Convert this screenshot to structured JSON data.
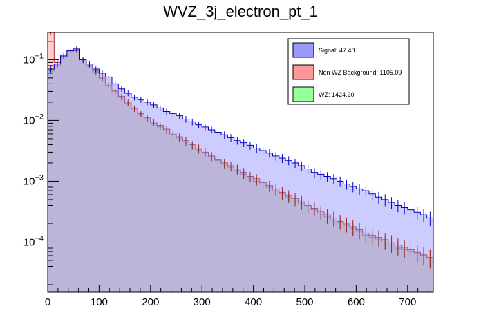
{
  "chart_data": {
    "type": "histogram",
    "title": "WVZ_3j_electron_pt_1",
    "xlabel": "",
    "ylabel": "",
    "xlim": [
      0,
      750
    ],
    "ylim": [
      1.5e-05,
      0.28
    ],
    "y_scale": "log",
    "bin_width": 12.5,
    "x_ticks": [
      0,
      100,
      200,
      300,
      400,
      500,
      600,
      700
    ],
    "x_tick_labels": [
      "0",
      "100",
      "200",
      "300",
      "400",
      "500",
      "600",
      "700"
    ],
    "y_ticks": [
      {
        "value": 0.1,
        "base": "10",
        "exp": "−1"
      },
      {
        "value": 0.01,
        "base": "10",
        "exp": "−2"
      },
      {
        "value": 0.001,
        "base": "10",
        "exp": "−3"
      },
      {
        "value": 0.0001,
        "base": "10",
        "exp": "−4"
      }
    ],
    "legend_position": "top-right",
    "colors": {
      "signal": "#9999ff",
      "background": "#ff9999",
      "wz": "#99ff99",
      "overlap_signal_wz": "#66c2a5",
      "overlap_all": "#7f9f6a",
      "signal_edge": "#0000cc"
    },
    "series": [
      {
        "name": "Signal: 47.48",
        "color": "#9999ff",
        "values": [
          0.07,
          0.085,
          0.115,
          0.14,
          0.15,
          0.1,
          0.085,
          0.07,
          0.06,
          0.052,
          0.04,
          0.033,
          0.028,
          0.024,
          0.022,
          0.02,
          0.018,
          0.016,
          0.014,
          0.013,
          0.012,
          0.0105,
          0.0095,
          0.0085,
          0.0078,
          0.007,
          0.0064,
          0.0058,
          0.0052,
          0.0047,
          0.0043,
          0.0039,
          0.0035,
          0.0032,
          0.0029,
          0.0026,
          0.0024,
          0.0022,
          0.002,
          0.0018,
          0.0016,
          0.0014,
          0.0013,
          0.0012,
          0.0011,
          0.001,
          0.0009,
          0.00082,
          0.00075,
          0.0007,
          0.00062,
          0.00055,
          0.0005,
          0.00045,
          0.0004,
          0.00037,
          0.00034,
          0.00031,
          0.00028,
          0.00025
        ],
        "errors": [
          0.008,
          0.009,
          0.012,
          0.014,
          0.015,
          0.01,
          0.009,
          0.007,
          0.006,
          0.005,
          0.004,
          0.0035,
          0.003,
          0.0026,
          0.0024,
          0.0022,
          0.002,
          0.0018,
          0.0016,
          0.0015,
          0.0014,
          0.0013,
          0.0012,
          0.0011,
          0.001,
          0.0009,
          0.00085,
          0.0008,
          0.00075,
          0.0007,
          0.00065,
          0.0006,
          0.00055,
          0.0005,
          0.00046,
          0.00042,
          0.0004,
          0.00037,
          0.00034,
          0.00031,
          0.00028,
          0.00025,
          0.00023,
          0.00021,
          0.0002,
          0.00019,
          0.00017,
          0.00016,
          0.00015,
          0.00014,
          0.00013,
          0.00012,
          0.00011,
          0.0001,
          9e-05,
          8.5e-05,
          8e-05,
          7.5e-05,
          7e-05,
          6.5e-05
        ]
      },
      {
        "name": "Non WZ Background: 1105.09",
        "color": "#ff9999",
        "values": [
          0.28,
          0.09,
          0.12,
          0.14,
          0.14,
          0.1,
          0.08,
          0.065,
          0.05,
          0.04,
          0.031,
          0.025,
          0.02,
          0.016,
          0.013,
          0.011,
          0.0095,
          0.0083,
          0.0072,
          0.0062,
          0.0054,
          0.0047,
          0.004,
          0.0035,
          0.003,
          0.0026,
          0.0023,
          0.002,
          0.0018,
          0.0016,
          0.0014,
          0.0012,
          0.0011,
          0.00095,
          0.00085,
          0.00075,
          0.00066,
          0.00058,
          0.00052,
          0.00046,
          0.0004,
          0.00036,
          0.00032,
          0.00028,
          0.00025,
          0.00022,
          0.0002,
          0.00018,
          0.00016,
          0.00014,
          0.00013,
          0.00012,
          0.00011,
          0.0001,
          9e-05,
          8.2e-05,
          7.5e-05,
          6.8e-05,
          6.2e-05,
          5.6e-05
        ],
        "errors": [
          0.02,
          0.008,
          0.01,
          0.011,
          0.011,
          0.009,
          0.007,
          0.006,
          0.005,
          0.004,
          0.0032,
          0.0026,
          0.0021,
          0.0017,
          0.0014,
          0.0012,
          0.0011,
          0.001,
          0.0009,
          0.0008,
          0.00072,
          0.00065,
          0.00058,
          0.00052,
          0.00047,
          0.00042,
          0.00038,
          0.00034,
          0.00031,
          0.00028,
          0.00025,
          0.00022,
          0.0002,
          0.00018,
          0.00016,
          0.00015,
          0.00014,
          0.00013,
          0.00012,
          0.00011,
          0.0001,
          9e-05,
          8e-05,
          7.2e-05,
          6.6e-05,
          6e-05,
          5.5e-05,
          5e-05,
          4.6e-05,
          4.2e-05,
          3.8e-05,
          3.5e-05,
          3.2e-05,
          3e-05,
          2.8e-05,
          2.6e-05,
          2.4e-05,
          2.2e-05,
          2e-05,
          1.9e-05
        ]
      },
      {
        "name": "WZ: 1424.20",
        "color": "#99ff99",
        "values": [
          0.065,
          0.08,
          0.11,
          0.135,
          0.14,
          0.095,
          0.08,
          0.062,
          0.048,
          0.038,
          0.03,
          0.024,
          0.019,
          0.0155,
          0.0125,
          0.0105,
          0.009,
          0.0078,
          0.0068,
          0.0059,
          0.0051,
          0.0044,
          0.0038,
          0.0033,
          0.0029,
          0.0025,
          0.0022,
          0.0019,
          0.0017,
          0.0015,
          0.0013,
          0.00115,
          0.001,
          0.0009,
          0.0008,
          0.0007,
          0.00062,
          0.00055,
          0.00049,
          0.00043,
          0.00038,
          0.00034,
          0.0003,
          0.00026,
          0.00023,
          0.00021,
          0.00019,
          0.00017,
          0.00015,
          0.00013,
          0.00012,
          0.00011,
          0.0001,
          9e-05,
          8e-05,
          7.5e-05,
          7e-05,
          6.5e-05,
          6e-05,
          5.5e-05
        ],
        "errors": [
          0.006,
          0.007,
          0.009,
          0.011,
          0.011,
          0.008,
          0.007,
          0.006,
          0.005,
          0.004,
          0.003,
          0.0025,
          0.002,
          0.0016,
          0.0013,
          0.0011,
          0.001,
          0.0009,
          0.0008,
          0.0007,
          0.00062,
          0.00055,
          0.0005,
          0.00045,
          0.0004,
          0.00036,
          0.00032,
          0.00029,
          0.00026,
          0.00024,
          0.00021,
          0.00019,
          0.00017,
          0.00016,
          0.00014,
          0.00013,
          0.00012,
          0.00011,
          0.0001,
          9e-05,
          8e-05,
          7.2e-05,
          6.6e-05,
          6e-05,
          5.5e-05,
          5e-05,
          4.6e-05,
          4.2e-05,
          3.8e-05,
          3.4e-05,
          3.1e-05,
          2.8e-05,
          2.6e-05,
          2.4e-05,
          2.2e-05,
          2e-05,
          1.9e-05,
          1.8e-05,
          1.7e-05,
          1.6e-05
        ]
      }
    ]
  }
}
